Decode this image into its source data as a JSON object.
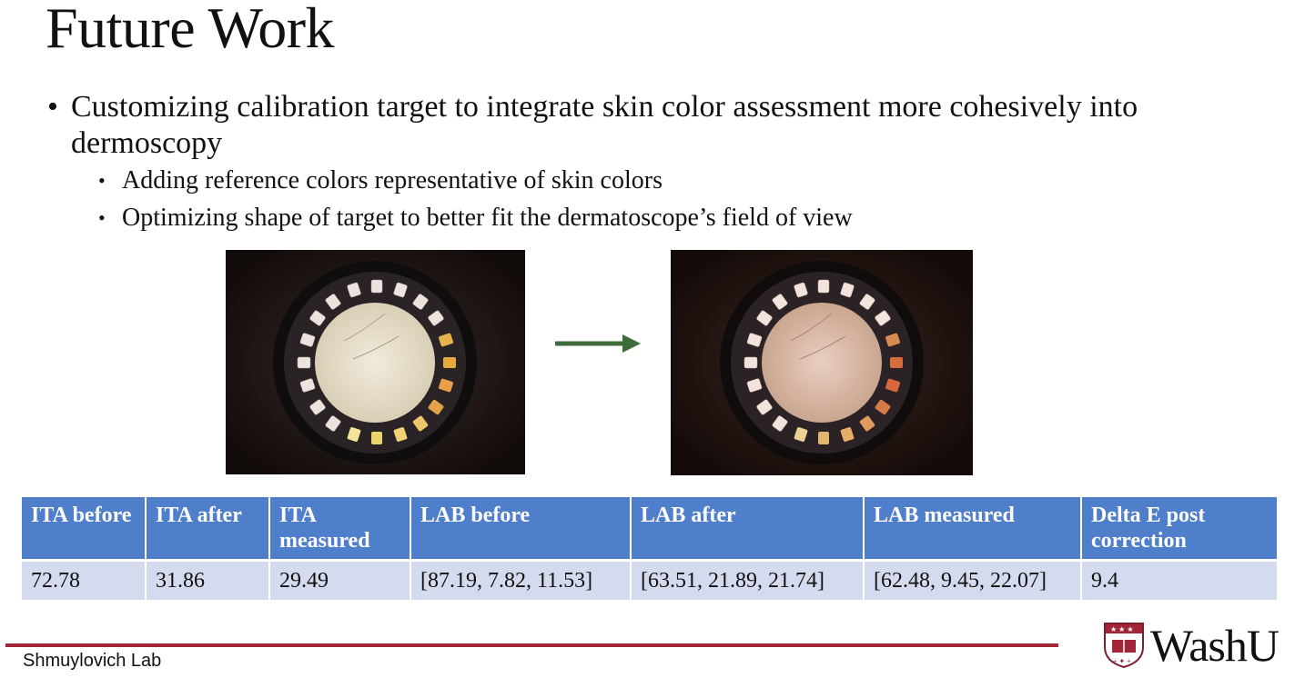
{
  "slide": {
    "title": "Future Work",
    "bullet_main": "Customizing calibration target to integrate skin color assessment more cohesively into dermoscopy",
    "sub_bullets": [
      "Adding reference colors representative of skin colors",
      "Optimizing shape of target to better fit the dermatoscope’s field of view"
    ]
  },
  "images": {
    "before": "dermoscopy-image-before-calibration",
    "after": "dermoscopy-image-after-calibration",
    "arrow_color": "#3e6b3a"
  },
  "table": {
    "headers": [
      "ITA before",
      "ITA after",
      "ITA measured",
      "LAB before",
      "LAB after",
      "LAB measured",
      "Delta E post correction"
    ],
    "row": [
      "72.78",
      "31.86",
      "29.49",
      "[87.19, 7.82, 11.53]",
      "[63.51, 21.89, 21.74]",
      "[62.48, 9.45, 22.07]",
      "9.4"
    ]
  },
  "footer": {
    "lab_name": "Shmuylovich Lab",
    "logo_text": "WashU",
    "accent_color": "#a32638"
  }
}
